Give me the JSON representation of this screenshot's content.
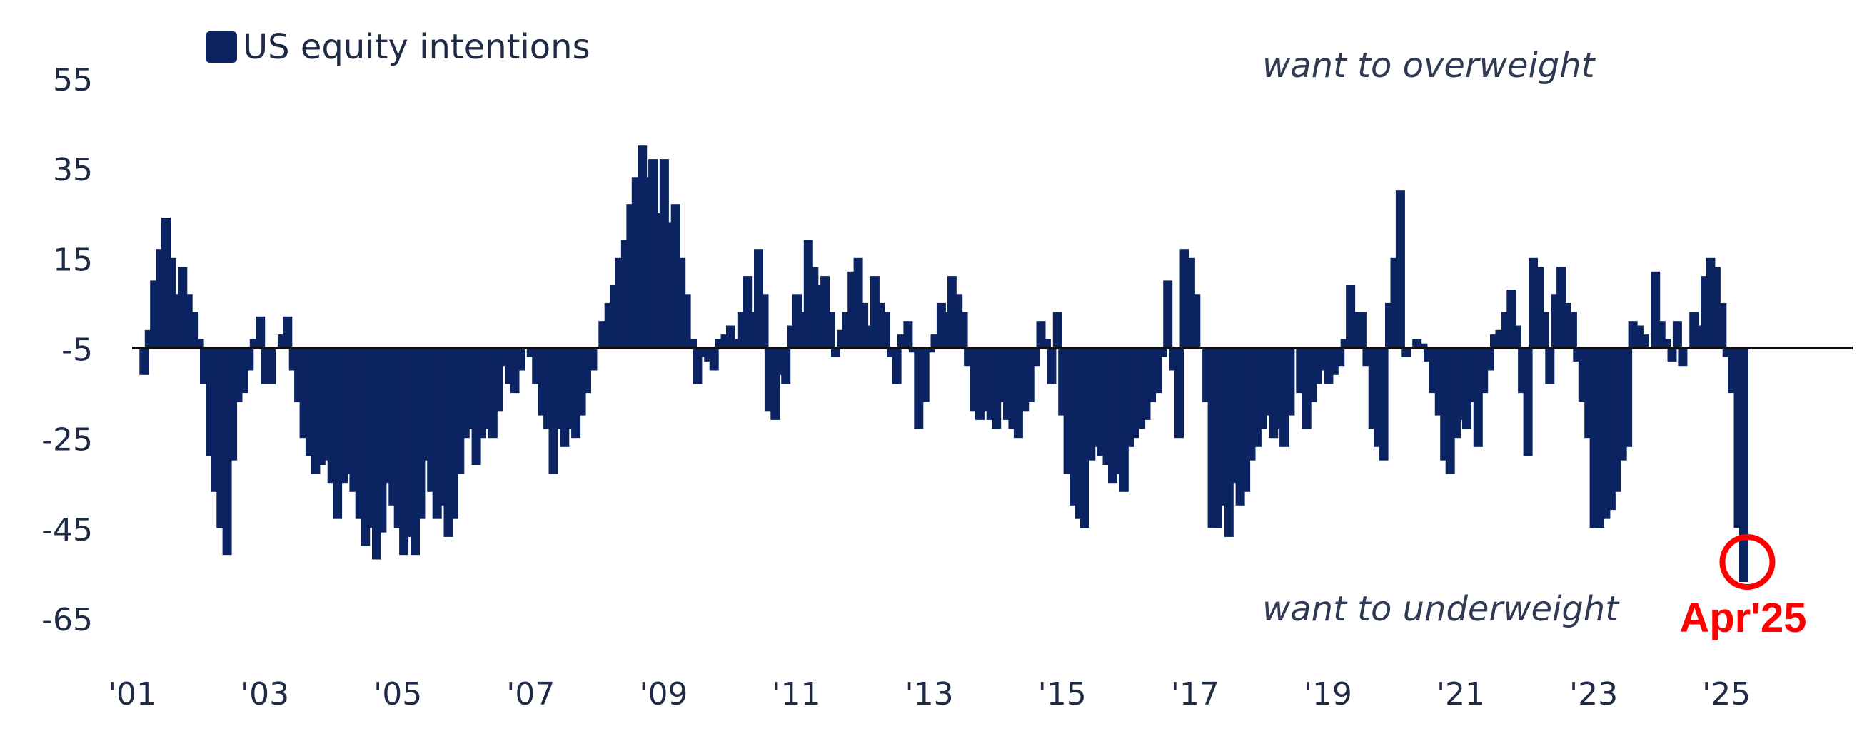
{
  "chart_data": {
    "type": "bar",
    "title": "",
    "xlabel": "",
    "ylabel": "",
    "ylim": [
      -65,
      65
    ],
    "xlim": [
      2001.0,
      2026.9
    ],
    "yticks": [
      "55",
      "35",
      "15",
      "-5",
      "-25",
      "-45",
      "-65"
    ],
    "ytick_values": [
      55,
      35,
      15,
      -5,
      -25,
      -45,
      -65
    ],
    "xticks": [
      "'01",
      "'03",
      "'05",
      "'07",
      "'09",
      "'11",
      "'13",
      "'15",
      "'17",
      "'19",
      "'21",
      "'23",
      "'25"
    ],
    "xtick_values": [
      2001,
      2003,
      2005,
      2007,
      2009,
      2011,
      2013,
      2015,
      2017,
      2019,
      2021,
      2023,
      2025
    ],
    "grid": false,
    "legend_position": "top-left",
    "series": [
      {
        "name": "US equity intentions",
        "color": "#0b2461",
        "points": [
          [
            2001.17,
            -6
          ],
          [
            2001.25,
            4
          ],
          [
            2001.33,
            15
          ],
          [
            2001.42,
            22
          ],
          [
            2001.5,
            29
          ],
          [
            2001.58,
            20
          ],
          [
            2001.67,
            12
          ],
          [
            2001.75,
            18
          ],
          [
            2001.83,
            12
          ],
          [
            2001.92,
            8
          ],
          [
            2002.0,
            2
          ],
          [
            2002.08,
            -8
          ],
          [
            2002.17,
            -24
          ],
          [
            2002.25,
            -32
          ],
          [
            2002.33,
            -40
          ],
          [
            2002.42,
            -46
          ],
          [
            2002.5,
            -25
          ],
          [
            2002.58,
            -12
          ],
          [
            2002.67,
            -10
          ],
          [
            2002.75,
            -5
          ],
          [
            2002.83,
            2
          ],
          [
            2002.92,
            7
          ],
          [
            2003.0,
            -8
          ],
          [
            2003.08,
            -8
          ],
          [
            2003.17,
            0
          ],
          [
            2003.25,
            3
          ],
          [
            2003.33,
            7
          ],
          [
            2003.42,
            -5
          ],
          [
            2003.5,
            -12
          ],
          [
            2003.58,
            -20
          ],
          [
            2003.67,
            -24
          ],
          [
            2003.75,
            -28
          ],
          [
            2003.83,
            -26
          ],
          [
            2003.92,
            -25
          ],
          [
            2004.0,
            -30
          ],
          [
            2004.08,
            -38
          ],
          [
            2004.17,
            -30
          ],
          [
            2004.25,
            -28
          ],
          [
            2004.33,
            -32
          ],
          [
            2004.42,
            -38
          ],
          [
            2004.5,
            -44
          ],
          [
            2004.58,
            -40
          ],
          [
            2004.67,
            -47
          ],
          [
            2004.75,
            -41
          ],
          [
            2004.83,
            -30
          ],
          [
            2004.92,
            -35
          ],
          [
            2005.0,
            -40
          ],
          [
            2005.08,
            -46
          ],
          [
            2005.17,
            -42
          ],
          [
            2005.25,
            -46
          ],
          [
            2005.33,
            -38
          ],
          [
            2005.42,
            -25
          ],
          [
            2005.5,
            -32
          ],
          [
            2005.58,
            -38
          ],
          [
            2005.67,
            -35
          ],
          [
            2005.75,
            -42
          ],
          [
            2005.83,
            -38
          ],
          [
            2005.92,
            -28
          ],
          [
            2006.0,
            -20
          ],
          [
            2006.08,
            -18
          ],
          [
            2006.17,
            -26
          ],
          [
            2006.25,
            -20
          ],
          [
            2006.33,
            -18
          ],
          [
            2006.42,
            -20
          ],
          [
            2006.5,
            -14
          ],
          [
            2006.58,
            -4
          ],
          [
            2006.67,
            -8
          ],
          [
            2006.75,
            -10
          ],
          [
            2006.83,
            -5
          ],
          [
            2006.92,
            0
          ],
          [
            2007.0,
            -2
          ],
          [
            2007.08,
            -8
          ],
          [
            2007.17,
            -15
          ],
          [
            2007.25,
            -18
          ],
          [
            2007.33,
            -28
          ],
          [
            2007.42,
            -18
          ],
          [
            2007.5,
            -22
          ],
          [
            2007.58,
            -18
          ],
          [
            2007.67,
            -20
          ],
          [
            2007.75,
            -15
          ],
          [
            2007.83,
            -10
          ],
          [
            2007.92,
            -5
          ],
          [
            2008.0,
            0
          ],
          [
            2008.08,
            6
          ],
          [
            2008.17,
            10
          ],
          [
            2008.25,
            14
          ],
          [
            2008.33,
            20
          ],
          [
            2008.42,
            24
          ],
          [
            2008.5,
            32
          ],
          [
            2008.58,
            38
          ],
          [
            2008.67,
            45
          ],
          [
            2008.75,
            38
          ],
          [
            2008.83,
            42
          ],
          [
            2008.92,
            30
          ],
          [
            2009.0,
            42
          ],
          [
            2009.08,
            28
          ],
          [
            2009.17,
            32
          ],
          [
            2009.25,
            20
          ],
          [
            2009.33,
            12
          ],
          [
            2009.42,
            2
          ],
          [
            2009.5,
            -8
          ],
          [
            2009.58,
            -2
          ],
          [
            2009.67,
            -3
          ],
          [
            2009.75,
            -5
          ],
          [
            2009.83,
            2
          ],
          [
            2009.92,
            3
          ],
          [
            2010.0,
            5
          ],
          [
            2010.08,
            2
          ],
          [
            2010.17,
            8
          ],
          [
            2010.25,
            16
          ],
          [
            2010.33,
            8
          ],
          [
            2010.42,
            22
          ],
          [
            2010.5,
            12
          ],
          [
            2010.58,
            -14
          ],
          [
            2010.67,
            -16
          ],
          [
            2010.75,
            -6
          ],
          [
            2010.83,
            -8
          ],
          [
            2010.92,
            5
          ],
          [
            2011.0,
            12
          ],
          [
            2011.08,
            8
          ],
          [
            2011.17,
            24
          ],
          [
            2011.25,
            18
          ],
          [
            2011.33,
            14
          ],
          [
            2011.42,
            16
          ],
          [
            2011.5,
            8
          ],
          [
            2011.58,
            -2
          ],
          [
            2011.67,
            4
          ],
          [
            2011.75,
            8
          ],
          [
            2011.83,
            17
          ],
          [
            2011.92,
            20
          ],
          [
            2012.0,
            10
          ],
          [
            2012.08,
            5
          ],
          [
            2012.17,
            16
          ],
          [
            2012.25,
            10
          ],
          [
            2012.33,
            8
          ],
          [
            2012.42,
            -2
          ],
          [
            2012.5,
            -8
          ],
          [
            2012.58,
            3
          ],
          [
            2012.67,
            6
          ],
          [
            2012.75,
            -1
          ],
          [
            2012.83,
            -18
          ],
          [
            2012.92,
            -12
          ],
          [
            2013.0,
            -1
          ],
          [
            2013.08,
            3
          ],
          [
            2013.17,
            10
          ],
          [
            2013.25,
            8
          ],
          [
            2013.33,
            16
          ],
          [
            2013.42,
            12
          ],
          [
            2013.5,
            8
          ],
          [
            2013.58,
            -4
          ],
          [
            2013.67,
            -14
          ],
          [
            2013.75,
            -16
          ],
          [
            2013.83,
            -14
          ],
          [
            2013.92,
            -16
          ],
          [
            2014.0,
            -18
          ],
          [
            2014.08,
            -12
          ],
          [
            2014.17,
            -16
          ],
          [
            2014.25,
            -18
          ],
          [
            2014.33,
            -20
          ],
          [
            2014.42,
            -14
          ],
          [
            2014.5,
            -12
          ],
          [
            2014.58,
            -4
          ],
          [
            2014.67,
            6
          ],
          [
            2014.75,
            2
          ],
          [
            2014.83,
            -8
          ],
          [
            2014.92,
            8
          ],
          [
            2015.0,
            -15
          ],
          [
            2015.08,
            -28
          ],
          [
            2015.17,
            -35
          ],
          [
            2015.25,
            -38
          ],
          [
            2015.33,
            -40
          ],
          [
            2015.42,
            -25
          ],
          [
            2015.5,
            -22
          ],
          [
            2015.58,
            -24
          ],
          [
            2015.67,
            -26
          ],
          [
            2015.75,
            -30
          ],
          [
            2015.83,
            -28
          ],
          [
            2015.92,
            -32
          ],
          [
            2016.0,
            -22
          ],
          [
            2016.08,
            -20
          ],
          [
            2016.17,
            -18
          ],
          [
            2016.25,
            -16
          ],
          [
            2016.33,
            -12
          ],
          [
            2016.42,
            -10
          ],
          [
            2016.5,
            -2
          ],
          [
            2016.58,
            15
          ],
          [
            2016.67,
            -5
          ],
          [
            2016.75,
            -20
          ],
          [
            2016.83,
            22
          ],
          [
            2016.92,
            20
          ],
          [
            2017.0,
            12
          ],
          [
            2017.08,
            0
          ],
          [
            2017.17,
            -12
          ],
          [
            2017.25,
            -40
          ],
          [
            2017.33,
            -40
          ],
          [
            2017.42,
            -35
          ],
          [
            2017.5,
            -42
          ],
          [
            2017.58,
            -30
          ],
          [
            2017.67,
            -35
          ],
          [
            2017.75,
            -32
          ],
          [
            2017.83,
            -25
          ],
          [
            2017.92,
            -22
          ],
          [
            2018.0,
            -18
          ],
          [
            2018.08,
            -15
          ],
          [
            2018.17,
            -20
          ],
          [
            2018.25,
            -18
          ],
          [
            2018.33,
            -22
          ],
          [
            2018.42,
            -15
          ],
          [
            2018.5,
            0
          ],
          [
            2018.58,
            -10
          ],
          [
            2018.67,
            -18
          ],
          [
            2018.75,
            -12
          ],
          [
            2018.83,
            -8
          ],
          [
            2018.92,
            -5
          ],
          [
            2019.0,
            -8
          ],
          [
            2019.08,
            -6
          ],
          [
            2019.17,
            -4
          ],
          [
            2019.25,
            2
          ],
          [
            2019.33,
            14
          ],
          [
            2019.42,
            8
          ],
          [
            2019.5,
            8
          ],
          [
            2019.58,
            -4
          ],
          [
            2019.67,
            -18
          ],
          [
            2019.75,
            -22
          ],
          [
            2019.83,
            -25
          ],
          [
            2019.92,
            10
          ],
          [
            2020.0,
            20
          ],
          [
            2020.08,
            35
          ],
          [
            2020.17,
            -2
          ],
          [
            2020.25,
            0
          ],
          [
            2020.33,
            2
          ],
          [
            2020.42,
            1
          ],
          [
            2020.5,
            -3
          ],
          [
            2020.58,
            -10
          ],
          [
            2020.67,
            -15
          ],
          [
            2020.75,
            -25
          ],
          [
            2020.83,
            -28
          ],
          [
            2020.92,
            -20
          ],
          [
            2021.0,
            -16
          ],
          [
            2021.08,
            -18
          ],
          [
            2021.17,
            -12
          ],
          [
            2021.25,
            -22
          ],
          [
            2021.33,
            -10
          ],
          [
            2021.42,
            -5
          ],
          [
            2021.5,
            3
          ],
          [
            2021.58,
            4
          ],
          [
            2021.67,
            8
          ],
          [
            2021.75,
            13
          ],
          [
            2021.83,
            5
          ],
          [
            2021.92,
            -10
          ],
          [
            2022.0,
            -24
          ],
          [
            2022.08,
            20
          ],
          [
            2022.17,
            18
          ],
          [
            2022.25,
            8
          ],
          [
            2022.33,
            -8
          ],
          [
            2022.42,
            12
          ],
          [
            2022.5,
            18
          ],
          [
            2022.58,
            10
          ],
          [
            2022.67,
            8
          ],
          [
            2022.75,
            -3
          ],
          [
            2022.83,
            -12
          ],
          [
            2022.92,
            -20
          ],
          [
            2023.0,
            -40
          ],
          [
            2023.08,
            -40
          ],
          [
            2023.17,
            -38
          ],
          [
            2023.25,
            -36
          ],
          [
            2023.33,
            -32
          ],
          [
            2023.42,
            -25
          ],
          [
            2023.5,
            -22
          ],
          [
            2023.58,
            6
          ],
          [
            2023.67,
            5
          ],
          [
            2023.75,
            3
          ],
          [
            2023.83,
            0
          ],
          [
            2023.92,
            17
          ],
          [
            2024.0,
            6
          ],
          [
            2024.08,
            2
          ],
          [
            2024.17,
            -3
          ],
          [
            2024.25,
            6
          ],
          [
            2024.33,
            -4
          ],
          [
            2024.42,
            0
          ],
          [
            2024.5,
            8
          ],
          [
            2024.58,
            5
          ],
          [
            2024.67,
            16
          ],
          [
            2024.75,
            20
          ],
          [
            2024.83,
            18
          ],
          [
            2024.92,
            10
          ],
          [
            2025.0,
            -2
          ],
          [
            2025.08,
            -10
          ],
          [
            2025.17,
            -40
          ],
          [
            2025.25,
            -52
          ]
        ]
      }
    ],
    "annotations": [
      {
        "text": "want to overweight"
      },
      {
        "text": "want to underweight"
      }
    ],
    "highlight": {
      "label": "Apr'25",
      "x": 2025.25,
      "y": -52,
      "color": "#ff0000"
    }
  }
}
